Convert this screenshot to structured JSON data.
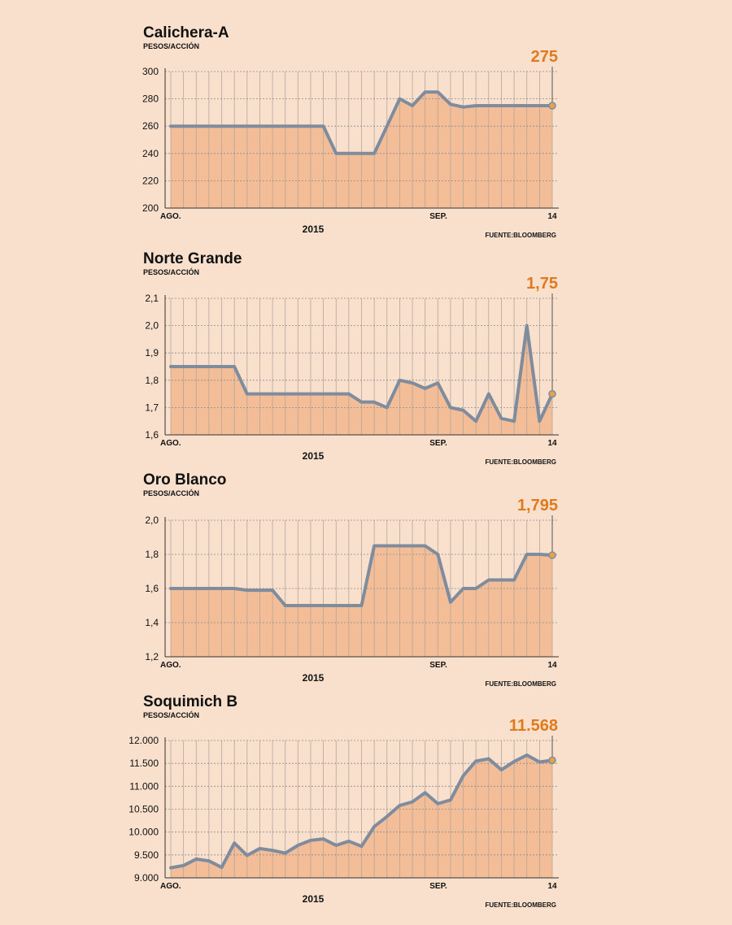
{
  "colors": {
    "background": "#f8e0cd",
    "area": "#f3bd98",
    "line": "#7f8c9d",
    "accent": "#e07a1f",
    "grid": "#8a8a8a"
  },
  "chart_data": [
    {
      "type": "area",
      "title": "Calichera-A",
      "ylabel": "PESOS/ACCIÓN",
      "ylim": [
        200,
        300
      ],
      "yticks": [
        "200",
        "220",
        "240",
        "260",
        "280",
        "300"
      ],
      "xticks": {
        "start": "AGO.",
        "mid": "SEP.",
        "end": "14"
      },
      "year": "2015",
      "source": "FUENTE:BLOOMBERG",
      "last_value_label": "275",
      "values": [
        260,
        260,
        260,
        260,
        260,
        260,
        260,
        260,
        260,
        260,
        260,
        260,
        260,
        240,
        240,
        240,
        240,
        260,
        280,
        275,
        285,
        285,
        276,
        274,
        275,
        275,
        275,
        275,
        275,
        275,
        275
      ]
    },
    {
      "type": "area",
      "title": "Norte Grande",
      "ylabel": "PESOS/ACCIÓN",
      "ylim": [
        1.6,
        2.1
      ],
      "yticks": [
        "1,6",
        "1,7",
        "1,8",
        "1,9",
        "2,0",
        "2,1"
      ],
      "xticks": {
        "start": "AGO.",
        "mid": "SEP.",
        "end": "14"
      },
      "year": "2015",
      "source": "FUENTE:BLOOMBERG",
      "last_value_label": "1,75",
      "values": [
        1.85,
        1.85,
        1.85,
        1.85,
        1.85,
        1.85,
        1.75,
        1.75,
        1.75,
        1.75,
        1.75,
        1.75,
        1.75,
        1.75,
        1.75,
        1.72,
        1.72,
        1.7,
        1.8,
        1.79,
        1.77,
        1.79,
        1.7,
        1.69,
        1.65,
        1.75,
        1.66,
        1.65,
        2.0,
        1.65,
        1.75
      ]
    },
    {
      "type": "area",
      "title": "Oro Blanco",
      "ylabel": "PESOS/ACCIÓN",
      "ylim": [
        1.2,
        2.0
      ],
      "yticks": [
        "1,2",
        "1,4",
        "1,6",
        "1,8",
        "2,0"
      ],
      "xticks": {
        "start": "AGO.",
        "mid": "SEP.",
        "end": "14"
      },
      "year": "2015",
      "source": "FUENTE:BLOOMBERG",
      "last_value_label": "1,795",
      "values": [
        1.6,
        1.6,
        1.6,
        1.6,
        1.6,
        1.6,
        1.59,
        1.59,
        1.59,
        1.5,
        1.5,
        1.5,
        1.5,
        1.5,
        1.5,
        1.5,
        1.85,
        1.85,
        1.85,
        1.85,
        1.85,
        1.8,
        1.52,
        1.6,
        1.6,
        1.65,
        1.65,
        1.65,
        1.8,
        1.8,
        1.795
      ]
    },
    {
      "type": "area",
      "title": "Soquimich B",
      "ylabel": "PESOS/ACCIÓN",
      "ylim": [
        9000,
        12000
      ],
      "yticks": [
        "9.000",
        "9.500",
        "10.000",
        "10.500",
        "11.000",
        "11.500",
        "12.000"
      ],
      "xticks": {
        "start": "AGO.",
        "mid": "SEP.",
        "end": "14"
      },
      "year": "2015",
      "source": "FUENTE:BLOOMBERG",
      "last_value_label": "11.568",
      "values": [
        9220,
        9270,
        9410,
        9370,
        9230,
        9760,
        9490,
        9640,
        9600,
        9540,
        9710,
        9820,
        9850,
        9710,
        9800,
        9690,
        10120,
        10340,
        10580,
        10660,
        10860,
        10620,
        10700,
        11230,
        11550,
        11600,
        11360,
        11540,
        11680,
        11530,
        11568
      ]
    }
  ]
}
